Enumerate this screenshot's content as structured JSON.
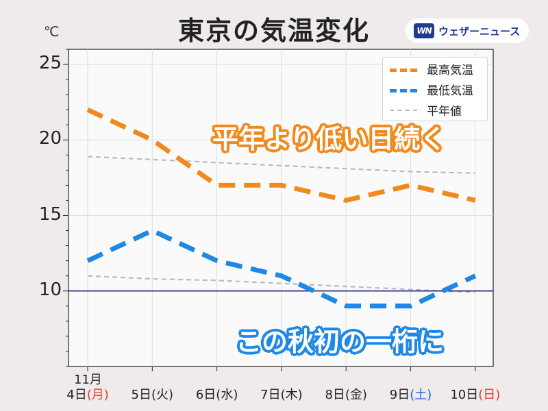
{
  "title": "東京の気温変化",
  "unit": "℃",
  "logo": {
    "mark": "WN",
    "text": "ウェザーニュース"
  },
  "callouts": [
    "平年より低い日続く",
    "この秋初の一桁に"
  ],
  "colors": {
    "high": "#f08a1c",
    "low": "#1e88e5",
    "normal": "#bbbbbb",
    "ref_line": "#1a237e",
    "sunday": "#e53935",
    "saturday": "#1e5fd8"
  },
  "chart_data": {
    "type": "line",
    "title": "東京の気温変化",
    "ylabel": "℃",
    "ylim": [
      5,
      26
    ],
    "yticks": [
      10,
      15,
      20,
      25
    ],
    "grid": true,
    "legend_position": "top-right",
    "x_month_label": "11月",
    "categories": [
      {
        "day": "4日",
        "dow": "(月)",
        "dow_color": "sunday"
      },
      {
        "day": "5日",
        "dow": "(火)",
        "dow_color": ""
      },
      {
        "day": "6日",
        "dow": "(水)",
        "dow_color": ""
      },
      {
        "day": "7日",
        "dow": "(木)",
        "dow_color": ""
      },
      {
        "day": "8日",
        "dow": "(金)",
        "dow_color": ""
      },
      {
        "day": "9日",
        "dow": "(土)",
        "dow_color": "saturday"
      },
      {
        "day": "10日",
        "dow": "(日)",
        "dow_color": "sunday"
      }
    ],
    "reference_line": 10,
    "series": [
      {
        "name": "最高気温",
        "values": [
          22,
          20,
          17,
          17,
          16,
          17,
          16
        ]
      },
      {
        "name": "最低気温",
        "values": [
          12,
          14,
          12,
          11,
          9,
          9,
          11
        ]
      },
      {
        "name": "平年値",
        "values": [
          18.9,
          18.7,
          18.5,
          18.3,
          18.1,
          17.9,
          17.8
        ]
      },
      {
        "name": "",
        "values": [
          11.0,
          10.8,
          10.7,
          10.5,
          10.3,
          10.1,
          9.9
        ]
      }
    ]
  }
}
